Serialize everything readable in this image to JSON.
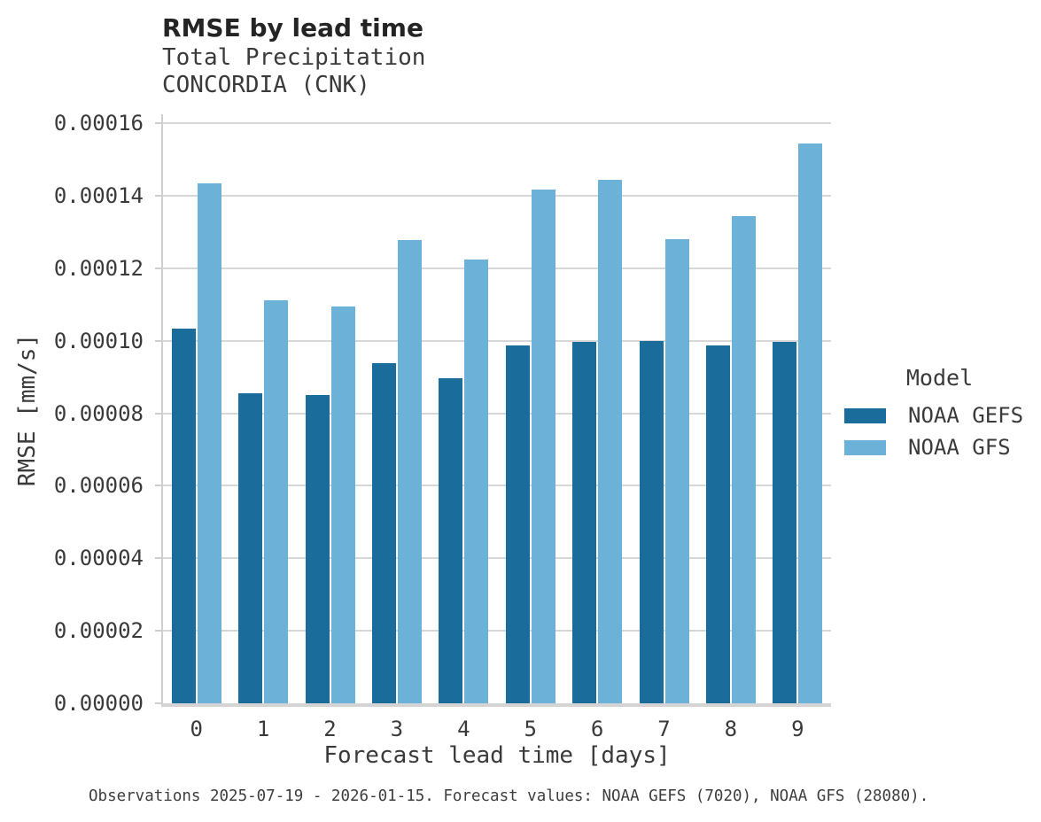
{
  "header": {
    "title": "RMSE by lead time",
    "subtitle_line1": "Total Precipitation",
    "subtitle_line2": "CONCORDIA (CNK)"
  },
  "chart_data": {
    "type": "bar",
    "title": "RMSE by lead time",
    "subtitle": [
      "Total Precipitation",
      "CONCORDIA (CNK)"
    ],
    "categories": [
      "0",
      "1",
      "2",
      "3",
      "4",
      "5",
      "6",
      "7",
      "8",
      "9"
    ],
    "series": [
      {
        "name": "NOAA GEFS",
        "color": "#1a6c9b",
        "values": [
          0.0001033,
          8.56e-05,
          8.5e-05,
          9.39e-05,
          8.97e-05,
          9.88e-05,
          9.96e-05,
          0.0001,
          9.88e-05,
          9.96e-05
        ]
      },
      {
        "name": "NOAA GFS",
        "color": "#6cb1d8",
        "values": [
          0.0001435,
          0.0001113,
          0.0001095,
          0.0001277,
          0.0001224,
          0.0001418,
          0.0001443,
          0.0001281,
          0.0001343,
          0.0001544
        ]
      }
    ],
    "xlabel": "Forecast lead time [days]",
    "ylabel": "RMSE [mm/s]",
    "ylim": [
      0,
      0.0001625
    ],
    "yticks": [
      0.0,
      2e-05,
      4e-05,
      6e-05,
      8e-05,
      0.0001,
      0.00012,
      0.00014,
      0.00016
    ],
    "ytick_decimals": 5,
    "grid": true,
    "legend_title": "Model",
    "legend_position": "right",
    "grid_color": "#d7d7d7",
    "spine_color": "#cfcfcf",
    "text_color": "#3a3a3a"
  },
  "footer": {
    "caption": "Observations 2025-07-19 - 2026-01-15. Forecast values: NOAA GEFS (7020), NOAA GFS (28080)."
  }
}
